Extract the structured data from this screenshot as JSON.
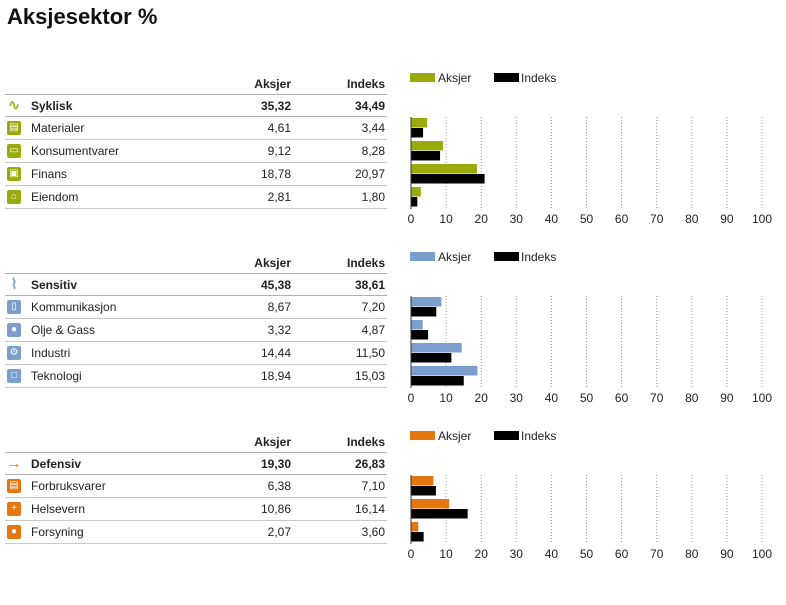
{
  "title": "Aksjesektor %",
  "col_headers": {
    "fund": "Aksjer",
    "index": "Indeks"
  },
  "legend": {
    "fund": "Aksjer",
    "index": "Indeks"
  },
  "sections": [
    {
      "name": "Syklisk",
      "icon": "cyclical-wave-icon",
      "color": "#9aaa0b",
      "total": {
        "fund": "35,32",
        "index": "34,49"
      },
      "rows": [
        {
          "label": "Materialer",
          "icon": "materials-icon",
          "fund": "4,61",
          "index": "3,44"
        },
        {
          "label": "Konsumentvarer",
          "icon": "car-icon",
          "fund": "9,12",
          "index": "8,28"
        },
        {
          "label": "Finans",
          "icon": "money-icon",
          "fund": "18,78",
          "index": "20,97"
        },
        {
          "label": "Eiendom",
          "icon": "house-icon",
          "fund": "2,81",
          "index": "1,80"
        }
      ]
    },
    {
      "name": "Sensitiv",
      "icon": "sensitive-wave-icon",
      "color": "#7b9fcc",
      "total": {
        "fund": "45,38",
        "index": "38,61"
      },
      "rows": [
        {
          "label": "Kommunikasjon",
          "icon": "phone-icon",
          "fund": "8,67",
          "index": "7,20"
        },
        {
          "label": "Olje & Gass",
          "icon": "drop-icon",
          "fund": "3,32",
          "index": "4,87"
        },
        {
          "label": "Industri",
          "icon": "gear-icon",
          "fund": "14,44",
          "index": "11,50"
        },
        {
          "label": "Teknologi",
          "icon": "computer-icon",
          "fund": "18,94",
          "index": "15,03"
        }
      ]
    },
    {
      "name": "Defensiv",
      "icon": "defensive-arrow-icon",
      "color": "#e3760f",
      "total": {
        "fund": "19,30",
        "index": "26,83"
      },
      "rows": [
        {
          "label": "Forbruksvarer",
          "icon": "cart-icon",
          "fund": "6,38",
          "index": "7,10"
        },
        {
          "label": "Helsevern",
          "icon": "cross-icon",
          "fund": "10,86",
          "index": "16,14"
        },
        {
          "label": "Forsyning",
          "icon": "bulb-icon",
          "fund": "2,07",
          "index": "3,60"
        }
      ]
    }
  ],
  "chart_data": [
    {
      "type": "bar",
      "categories": [
        "Materialer",
        "Konsumentvarer",
        "Finans",
        "Eiendom"
      ],
      "series": [
        {
          "name": "Aksjer",
          "values": [
            4.61,
            9.12,
            18.78,
            2.81
          ],
          "color": "#9aaa0b"
        },
        {
          "name": "Indeks",
          "values": [
            3.44,
            8.28,
            20.97,
            1.8
          ],
          "color": "#000000"
        }
      ],
      "xlim": [
        0,
        100
      ],
      "xticks": [
        0,
        10,
        20,
        30,
        40,
        50,
        60,
        70,
        80,
        90,
        100
      ],
      "grid": true,
      "legend": "top-left"
    },
    {
      "type": "bar",
      "categories": [
        "Kommunikasjon",
        "Olje & Gass",
        "Industri",
        "Teknologi"
      ],
      "series": [
        {
          "name": "Aksjer",
          "values": [
            8.67,
            3.32,
            14.44,
            18.94
          ],
          "color": "#7b9fcc"
        },
        {
          "name": "Indeks",
          "values": [
            7.2,
            4.87,
            11.5,
            15.03
          ],
          "color": "#000000"
        }
      ],
      "xlim": [
        0,
        100
      ],
      "xticks": [
        0,
        10,
        20,
        30,
        40,
        50,
        60,
        70,
        80,
        90,
        100
      ],
      "grid": true,
      "legend": "top-left"
    },
    {
      "type": "bar",
      "categories": [
        "Forbruksvarer",
        "Helsevern",
        "Forsyning"
      ],
      "series": [
        {
          "name": "Aksjer",
          "values": [
            6.38,
            10.86,
            2.07
          ],
          "color": "#e3760f"
        },
        {
          "name": "Indeks",
          "values": [
            7.1,
            16.14,
            3.6
          ],
          "color": "#000000"
        }
      ],
      "xlim": [
        0,
        100
      ],
      "xticks": [
        0,
        10,
        20,
        30,
        40,
        50,
        60,
        70,
        80,
        90,
        100
      ],
      "grid": true,
      "legend": "top-left"
    }
  ]
}
